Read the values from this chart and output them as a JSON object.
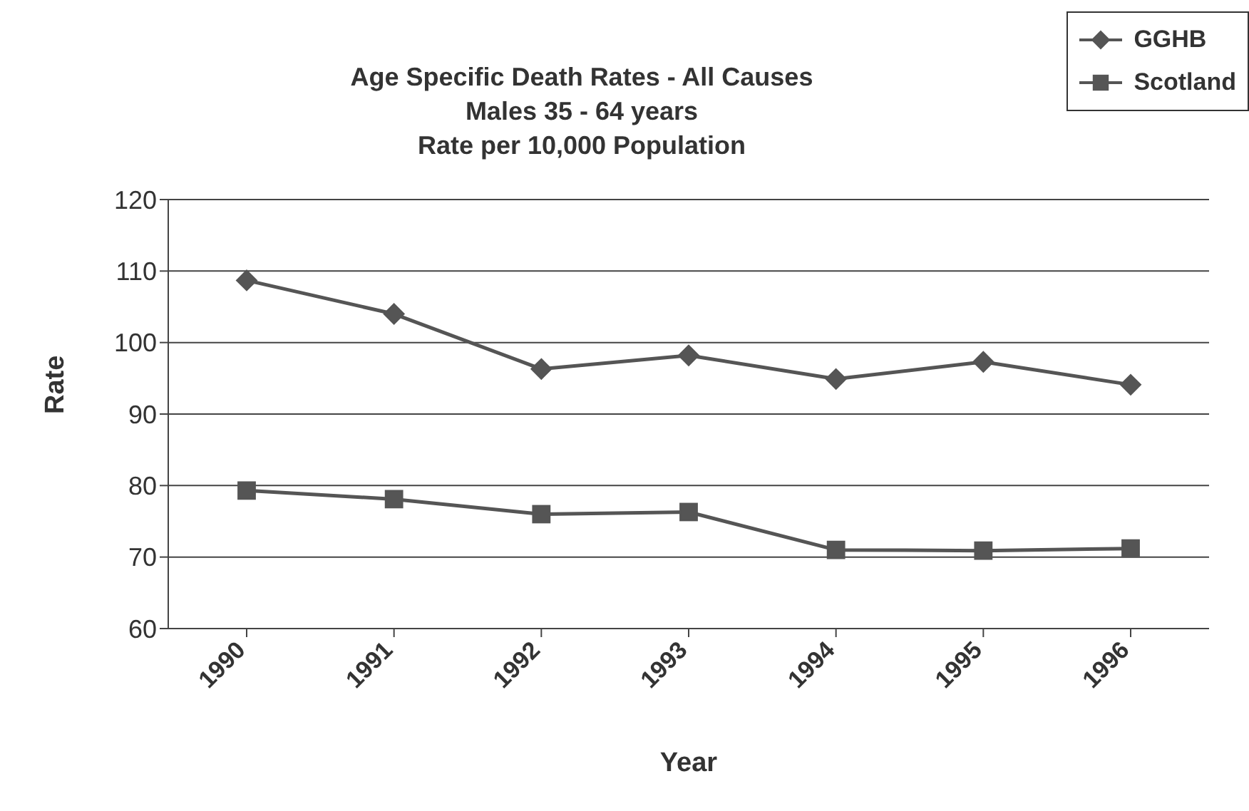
{
  "chart_data": {
    "type": "line",
    "title": "Age Specific Death Rates - All Causes",
    "subtitle": "Males 35 - 64 years\nRate per 10,000 Population",
    "xlabel": "Year",
    "ylabel": "Rate",
    "categories": [
      "1990",
      "1991",
      "1992",
      "1993",
      "1994",
      "1995",
      "1996"
    ],
    "series": [
      {
        "name": "GGHB",
        "color": "#555555",
        "marker": "diamond",
        "values": [
          108.7,
          104.0,
          96.3,
          98.2,
          94.9,
          97.3,
          94.1
        ]
      },
      {
        "name": "Scotland",
        "color": "#555555",
        "marker": "square",
        "values": [
          79.3,
          78.1,
          76.0,
          76.3,
          71.0,
          70.9,
          71.2
        ]
      }
    ],
    "ylim": [
      60,
      120
    ],
    "yticks": [
      60,
      70,
      80,
      90,
      100,
      110,
      120
    ],
    "grid": "y",
    "legend": "top right"
  }
}
